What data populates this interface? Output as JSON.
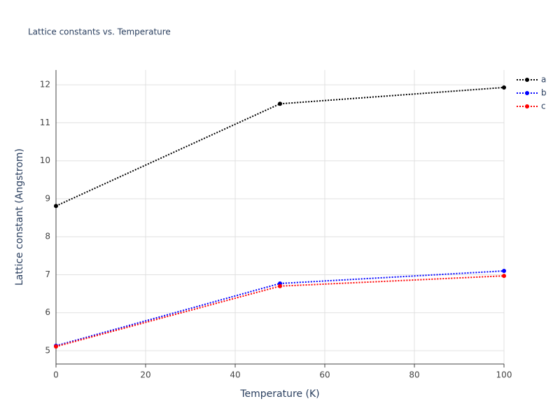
{
  "chart_data": {
    "type": "line",
    "title": "Lattice constants vs. Temperature",
    "x_label": "Temperature (K)",
    "y_label": "Lattice constant (Angstrom)",
    "x": [
      0,
      50,
      100
    ],
    "series": [
      {
        "name": "a",
        "color": "#000000",
        "values": [
          8.81,
          11.5,
          11.93
        ]
      },
      {
        "name": "b",
        "color": "#0000ff",
        "values": [
          5.13,
          6.77,
          7.1
        ]
      },
      {
        "name": "c",
        "color": "#ff0000",
        "values": [
          5.11,
          6.7,
          6.97
        ]
      }
    ],
    "xlim": [
      0,
      100
    ],
    "xticks": [
      0,
      20,
      40,
      60,
      80,
      100
    ],
    "ylim": [
      4.65,
      12.39
    ],
    "yticks": [
      5,
      6,
      7,
      8,
      9,
      10,
      11,
      12
    ],
    "grid": true,
    "legend": "top-right"
  }
}
